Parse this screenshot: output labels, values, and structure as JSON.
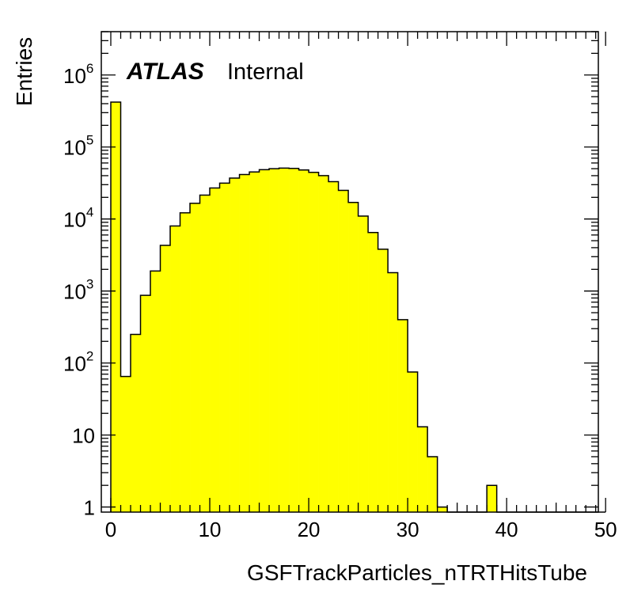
{
  "chart_data": {
    "type": "bar",
    "histogram": true,
    "title": "",
    "xlabel": "GSFTrackParticles_nTRTHitsTube",
    "ylabel": "Entries",
    "xlim": [
      0,
      50
    ],
    "ylim": [
      0.85,
      4000000
    ],
    "yscale": "log",
    "grid": false,
    "legend": "none",
    "bin_width": 1,
    "bin_edges_start": 0,
    "values": [
      420000,
      65,
      250,
      870,
      1900,
      4300,
      8000,
      12200,
      16500,
      21500,
      27000,
      31500,
      37000,
      41500,
      45000,
      48500,
      50000,
      51000,
      50500,
      48000,
      44500,
      40000,
      33000,
      25000,
      17000,
      11000,
      6500,
      3800,
      1800,
      400,
      75,
      13,
      5,
      1,
      0,
      0,
      0,
      0,
      2,
      0,
      0,
      0,
      0,
      0,
      0,
      0,
      0,
      0,
      0,
      0
    ],
    "x_ticks": [
      "0",
      "10",
      "20",
      "30",
      "40",
      "50"
    ],
    "y_ticks": [
      {
        "base": "10",
        "exp": "6"
      },
      {
        "base": "10",
        "exp": "5"
      },
      {
        "base": "10",
        "exp": "4"
      },
      {
        "base": "10",
        "exp": "3"
      },
      {
        "base": "10",
        "exp": "2"
      },
      {
        "base": "10",
        "exp": ""
      },
      {
        "base": "1",
        "exp": ""
      }
    ],
    "y_tick_values": [
      1000000,
      100000,
      10000,
      1000,
      100,
      10,
      1
    ],
    "experiment_label": "ATLAS",
    "status_label": "Internal",
    "colors": {
      "fill": "#ffff00",
      "line": "#000000",
      "frame": "#000000",
      "background": "#ffffff"
    }
  }
}
